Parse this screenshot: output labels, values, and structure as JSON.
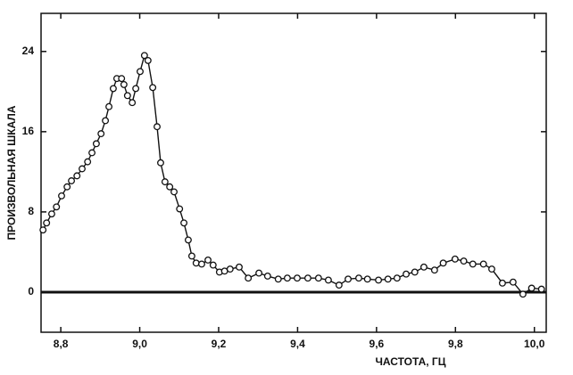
{
  "chart_data": {
    "type": "line",
    "y_label": "ПРОИЗВОЛЬНАЯ ШКАЛА",
    "x_label": "ЧАСТОТА, ГЦ",
    "xlim": [
      8.75,
      10.03
    ],
    "ylim": [
      -4,
      27.8
    ],
    "xticks": [
      {
        "value": 8.8,
        "label": "8,8"
      },
      {
        "value": 9.0,
        "label": "9,0"
      },
      {
        "value": 9.2,
        "label": "9,2"
      },
      {
        "value": 9.4,
        "label": "9,4"
      },
      {
        "value": 9.6,
        "label": "9,6"
      },
      {
        "value": 9.8,
        "label": "9,8"
      },
      {
        "value": 10.0,
        "label": "10,0"
      }
    ],
    "yticks": [
      0,
      8,
      16,
      24
    ],
    "hline": 0,
    "color": "#111111",
    "marker": "open-circle",
    "x": [
      8.755,
      8.764,
      8.777,
      8.789,
      8.802,
      8.816,
      8.827,
      8.841,
      8.854,
      8.868,
      8.879,
      8.89,
      8.902,
      8.913,
      8.922,
      8.933,
      8.942,
      8.954,
      8.96,
      8.969,
      8.981,
      8.99,
      9.001,
      9.012,
      9.021,
      9.033,
      9.044,
      9.053,
      9.064,
      9.076,
      9.087,
      9.101,
      9.112,
      9.123,
      9.132,
      9.143,
      9.157,
      9.173,
      9.186,
      9.202,
      9.215,
      9.229,
      9.252,
      9.275,
      9.302,
      9.324,
      9.351,
      9.374,
      9.399,
      9.426,
      9.453,
      9.478,
      9.505,
      9.528,
      9.555,
      9.577,
      9.605,
      9.629,
      9.652,
      9.675,
      9.697,
      9.72,
      9.747,
      9.769,
      9.799,
      9.821,
      9.844,
      9.871,
      9.892,
      9.919,
      9.946,
      9.971,
      9.993,
      10.018
    ],
    "values": [
      6.2,
      6.9,
      7.8,
      8.5,
      9.6,
      10.5,
      11.1,
      11.6,
      12.3,
      13.0,
      13.9,
      14.8,
      15.8,
      17.1,
      18.5,
      20.3,
      21.3,
      21.3,
      20.7,
      19.6,
      18.9,
      20.3,
      22.0,
      23.6,
      23.1,
      20.4,
      16.5,
      12.9,
      11.0,
      10.5,
      10.0,
      8.3,
      6.9,
      5.2,
      3.6,
      2.9,
      2.8,
      3.2,
      2.7,
      2.0,
      2.1,
      2.3,
      2.5,
      1.4,
      1.9,
      1.6,
      1.3,
      1.4,
      1.4,
      1.4,
      1.4,
      1.2,
      0.7,
      1.3,
      1.4,
      1.3,
      1.2,
      1.3,
      1.4,
      1.8,
      2.0,
      2.5,
      2.2,
      2.9,
      3.3,
      3.1,
      2.8,
      2.8,
      2.3,
      0.9,
      1.0,
      -0.2,
      0.4,
      0.3
    ]
  }
}
